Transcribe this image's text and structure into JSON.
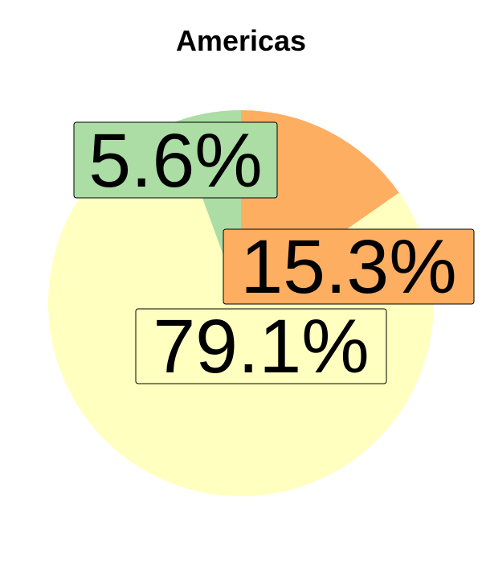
{
  "chart_data": {
    "type": "pie",
    "title": "Americas",
    "slices": [
      {
        "label": "15.3%",
        "value": 15.3,
        "color": "#FDAE61"
      },
      {
        "label": "79.1%",
        "value": 79.1,
        "color": "#FFFFBF"
      },
      {
        "label": "5.6%",
        "value": 5.6,
        "color": "#ABDDA4"
      }
    ]
  }
}
